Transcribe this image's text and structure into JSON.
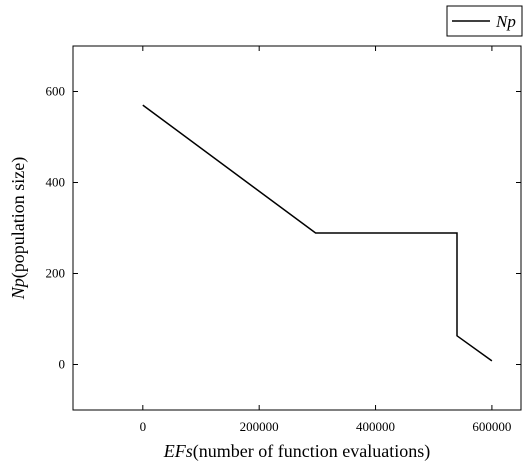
{
  "chart_data": {
    "type": "line",
    "title": "",
    "xlabel": {
      "italic": "EFs",
      "rest": "(number of function evaluations)"
    },
    "ylabel": {
      "italic": "Np",
      "rest": "(population size)"
    },
    "xlim": [
      -120000,
      650000
    ],
    "ylim": [
      -100,
      700
    ],
    "xticks": [
      0,
      200000,
      400000,
      600000
    ],
    "xtick_labels": [
      "0",
      "200000",
      "400000",
      "600000"
    ],
    "yticks": [
      0,
      200,
      400,
      600
    ],
    "ytick_labels": [
      "0",
      "200",
      "400",
      "600"
    ],
    "grid": false,
    "legend_position": "top-right",
    "series": [
      {
        "name": "Np",
        "color": "#000000",
        "x": [
          0,
          297000,
          540000,
          540000,
          600000
        ],
        "y": [
          570,
          289,
          289,
          63,
          8
        ]
      }
    ]
  }
}
